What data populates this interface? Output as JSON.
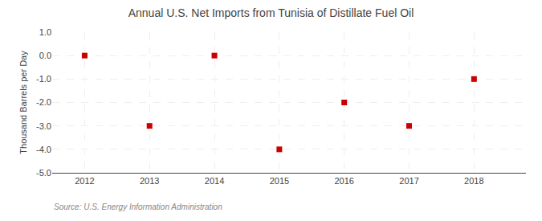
{
  "chart_data": {
    "type": "scatter",
    "title": "Annual U.S. Net Imports from Tunisia of Distillate Fuel Oil",
    "ylabel": "Thousand Barrels per Day",
    "annotations": [
      "Source: U.S. Energy Information Administration"
    ],
    "x": [
      2012,
      2013,
      2014,
      2015,
      2016,
      2017,
      2018
    ],
    "values": [
      0,
      -3,
      0,
      -4,
      -2,
      -3,
      -1
    ],
    "color": "#cc0000",
    "marker": "square",
    "xlim": [
      2011.5,
      2018.8
    ],
    "xticks": [
      2012,
      2013,
      2014,
      2015,
      2016,
      2017,
      2018
    ],
    "ylim": [
      -5.0,
      1.0
    ],
    "yticks": [
      {
        "value": -5.0,
        "label": "-5.0"
      },
      {
        "value": -4.0,
        "label": "-4.0"
      },
      {
        "value": -3.0,
        "label": "-3.0"
      },
      {
        "value": -2.0,
        "label": "-2.0"
      },
      {
        "value": -1.0,
        "label": "-1.0"
      },
      {
        "value": 0.0,
        "label": "0.0"
      },
      {
        "value": 1.0,
        "label": "1.0"
      }
    ],
    "grid": true
  }
}
